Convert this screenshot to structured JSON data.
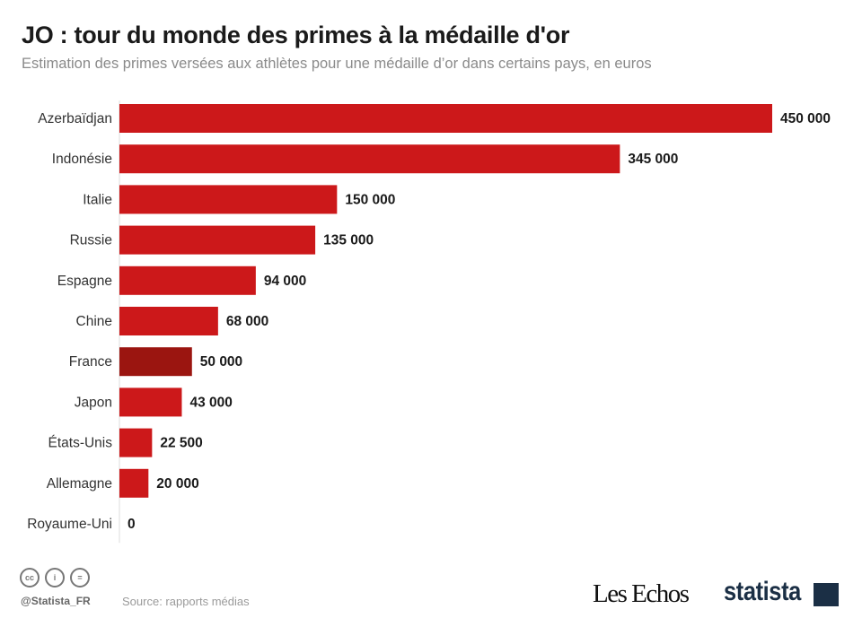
{
  "chart_data": {
    "type": "bar",
    "orientation": "horizontal",
    "title": "JO : tour du monde des primes à la médaille d'or",
    "subtitle": "Estimation des primes versées aux athlètes pour une médaille d’or dans certains pays, en euros",
    "categories": [
      "Azerbaïdjan",
      "Indonésie",
      "Italie",
      "Russie",
      "Espagne",
      "Chine",
      "France",
      "Japon",
      "États-Unis",
      "Allemagne",
      "Royaume-Uni"
    ],
    "values": [
      450000,
      345000,
      150000,
      135000,
      94000,
      68000,
      50000,
      43000,
      22500,
      20000,
      0
    ],
    "value_labels": [
      "450 000",
      "345 000",
      "150 000",
      "135 000",
      "94 000",
      "68 000",
      "50 000",
      "43 000",
      "22 500",
      "20 000",
      "0"
    ],
    "xlim": [
      0,
      450000
    ],
    "grid": false,
    "colors": {
      "bar": "#cc181a",
      "highlight": "#9b1510",
      "highlight_category": "France"
    }
  },
  "footer": {
    "handle": "@Statista_FR",
    "source": "Source: rapports médias",
    "icons": [
      "cc-icon",
      "by-icon",
      "nd-icon"
    ],
    "logos": [
      "Les Echos",
      "statista"
    ]
  }
}
